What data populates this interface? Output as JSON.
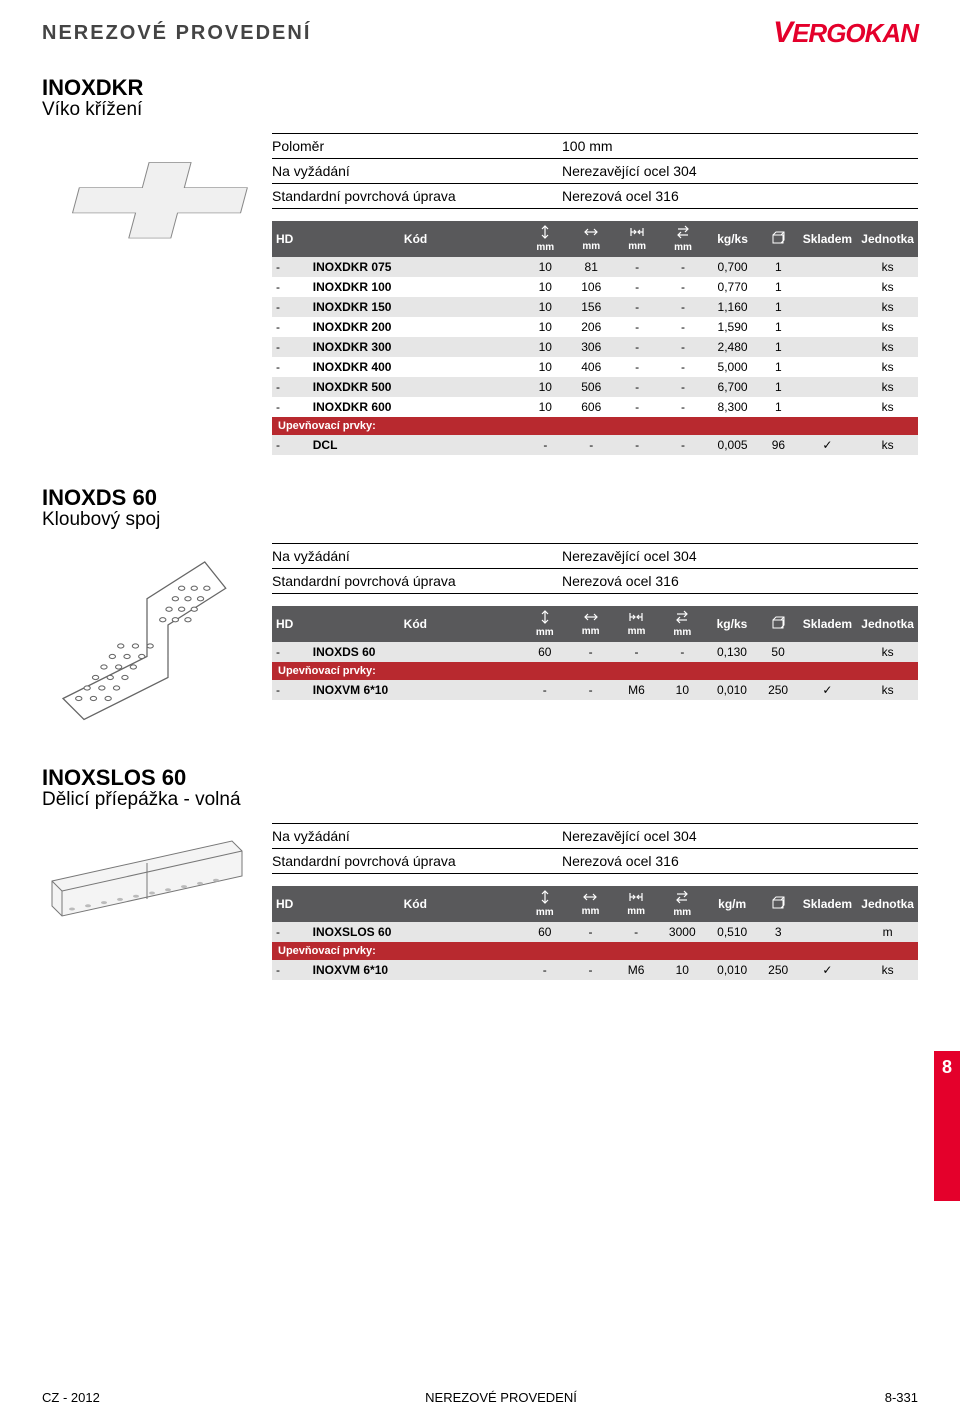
{
  "header": {
    "title": "NEREZOVÉ PROVEDENÍ",
    "brand": "VERGOKAN"
  },
  "columns": {
    "hd": "HD",
    "code": "Kód",
    "mm": "mm",
    "kgks": "kg/ks",
    "kgm": "kg/m",
    "pkg": "",
    "stock": "Skladem",
    "unit": "Jednotka"
  },
  "sections": [
    {
      "id": "inoxdkr",
      "h1": "INOXDKR",
      "h2": "Víko křížení",
      "meta": [
        {
          "k": "Poloměr",
          "v": "100 mm"
        },
        {
          "k": "Na vyžádání",
          "v": "Nerezavějící ocel 304"
        },
        {
          "k": "Standardní povrchová úprava",
          "v": "Nerezová ocel 316"
        }
      ],
      "weightLabel": "kg/ks",
      "rows": [
        {
          "dash": "-",
          "code": "INOXDKR 075",
          "c1": "10",
          "c2": "81",
          "c3": "-",
          "c4": "-",
          "w": "0,700",
          "q": "1",
          "s": "",
          "u": "ks"
        },
        {
          "dash": "-",
          "code": "INOXDKR 100",
          "c1": "10",
          "c2": "106",
          "c3": "-",
          "c4": "-",
          "w": "0,770",
          "q": "1",
          "s": "",
          "u": "ks"
        },
        {
          "dash": "-",
          "code": "INOXDKR 150",
          "c1": "10",
          "c2": "156",
          "c3": "-",
          "c4": "-",
          "w": "1,160",
          "q": "1",
          "s": "",
          "u": "ks"
        },
        {
          "dash": "-",
          "code": "INOXDKR 200",
          "c1": "10",
          "c2": "206",
          "c3": "-",
          "c4": "-",
          "w": "1,590",
          "q": "1",
          "s": "",
          "u": "ks"
        },
        {
          "dash": "-",
          "code": "INOXDKR 300",
          "c1": "10",
          "c2": "306",
          "c3": "-",
          "c4": "-",
          "w": "2,480",
          "q": "1",
          "s": "",
          "u": "ks"
        },
        {
          "dash": "-",
          "code": "INOXDKR 400",
          "c1": "10",
          "c2": "406",
          "c3": "-",
          "c4": "-",
          "w": "5,000",
          "q": "1",
          "s": "",
          "u": "ks"
        },
        {
          "dash": "-",
          "code": "INOXDKR 500",
          "c1": "10",
          "c2": "506",
          "c3": "-",
          "c4": "-",
          "w": "6,700",
          "q": "1",
          "s": "",
          "u": "ks"
        },
        {
          "dash": "-",
          "code": "INOXDKR 600",
          "c1": "10",
          "c2": "606",
          "c3": "-",
          "c4": "-",
          "w": "8,300",
          "q": "1",
          "s": "",
          "u": "ks"
        }
      ],
      "subhdr": "Upevňovací prvky:",
      "subrows": [
        {
          "dash": "-",
          "code": "DCL",
          "c1": "-",
          "c2": "-",
          "c3": "-",
          "c4": "-",
          "w": "0,005",
          "q": "96",
          "s": "✓",
          "u": "ks"
        }
      ]
    },
    {
      "id": "inoxds60",
      "h1": "INOXDS 60",
      "h2": "Kloubový spoj",
      "meta": [
        {
          "k": "Na vyžádání",
          "v": "Nerezavějící ocel 304"
        },
        {
          "k": "Standardní povrchová úprava",
          "v": "Nerezová ocel 316"
        }
      ],
      "weightLabel": "kg/ks",
      "rows": [
        {
          "dash": "-",
          "code": "INOXDS 60",
          "c1": "60",
          "c2": "-",
          "c3": "-",
          "c4": "-",
          "w": "0,130",
          "q": "50",
          "s": "",
          "u": "ks"
        }
      ],
      "subhdr": "Upevňovací prvky:",
      "subrows": [
        {
          "dash": "-",
          "code": "INOXVM 6*10",
          "c1": "-",
          "c2": "-",
          "c3": "M6",
          "c4": "10",
          "w": "0,010",
          "q": "250",
          "s": "✓",
          "u": "ks"
        }
      ]
    },
    {
      "id": "inoxslos60",
      "h1": "INOXSLOS 60",
      "h2": "Dělicí příepážka - volná",
      "meta": [
        {
          "k": "Na vyžádání",
          "v": "Nerezavějící ocel 304"
        },
        {
          "k": "Standardní povrchová úprava",
          "v": "Nerezová ocel 316"
        }
      ],
      "weightLabel": "kg/m",
      "rows": [
        {
          "dash": "-",
          "code": "INOXSLOS 60",
          "c1": "60",
          "c2": "-",
          "c3": "-",
          "c4": "3000",
          "w": "0,510",
          "q": "3",
          "s": "",
          "u": "m"
        }
      ],
      "subhdr": "Upevňovací prvky:",
      "subrows": [
        {
          "dash": "-",
          "code": "INOXVM 6*10",
          "c1": "-",
          "c2": "-",
          "c3": "M6",
          "c4": "10",
          "w": "0,010",
          "q": "250",
          "s": "✓",
          "u": "ks"
        }
      ]
    }
  ],
  "sideTab": "8",
  "footer": {
    "left": "CZ - 2012",
    "mid": "NEREZOVÉ PROVEDENÍ",
    "right": "8-331"
  }
}
